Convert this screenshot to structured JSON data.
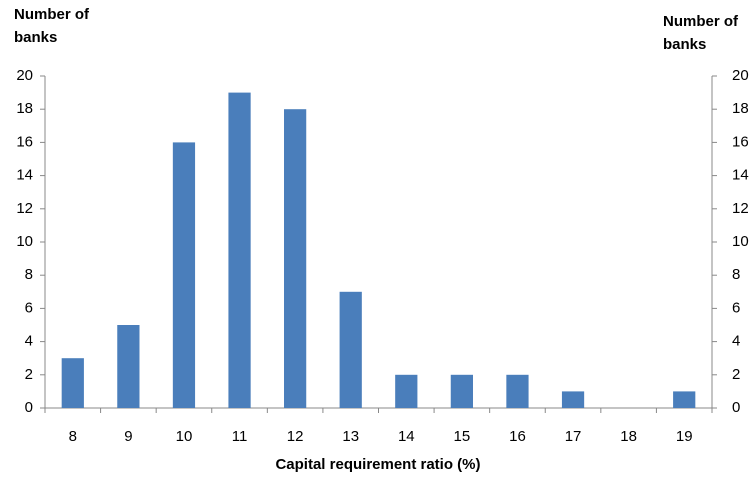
{
  "chart_data": {
    "type": "bar",
    "y_label": [
      "Number of",
      "banks"
    ],
    "y2_label": [
      "Number of",
      "banks"
    ],
    "x_label": "Capital requirement ratio (%)",
    "categories": [
      8,
      9,
      10,
      11,
      12,
      13,
      14,
      15,
      16,
      17,
      18,
      19
    ],
    "values": [
      3,
      5,
      16,
      19,
      18,
      7,
      2,
      2,
      2,
      1,
      0,
      1
    ],
    "color": "#4a7ebb",
    "ylim": [
      0,
      20
    ],
    "yticks": [
      0,
      2,
      4,
      6,
      8,
      10,
      12,
      14,
      16,
      18,
      20
    ],
    "y2lim": [
      0,
      20
    ],
    "y2ticks": [
      0,
      2,
      4,
      6,
      8,
      10,
      12,
      14,
      16,
      18,
      20
    ],
    "grid": false
  }
}
